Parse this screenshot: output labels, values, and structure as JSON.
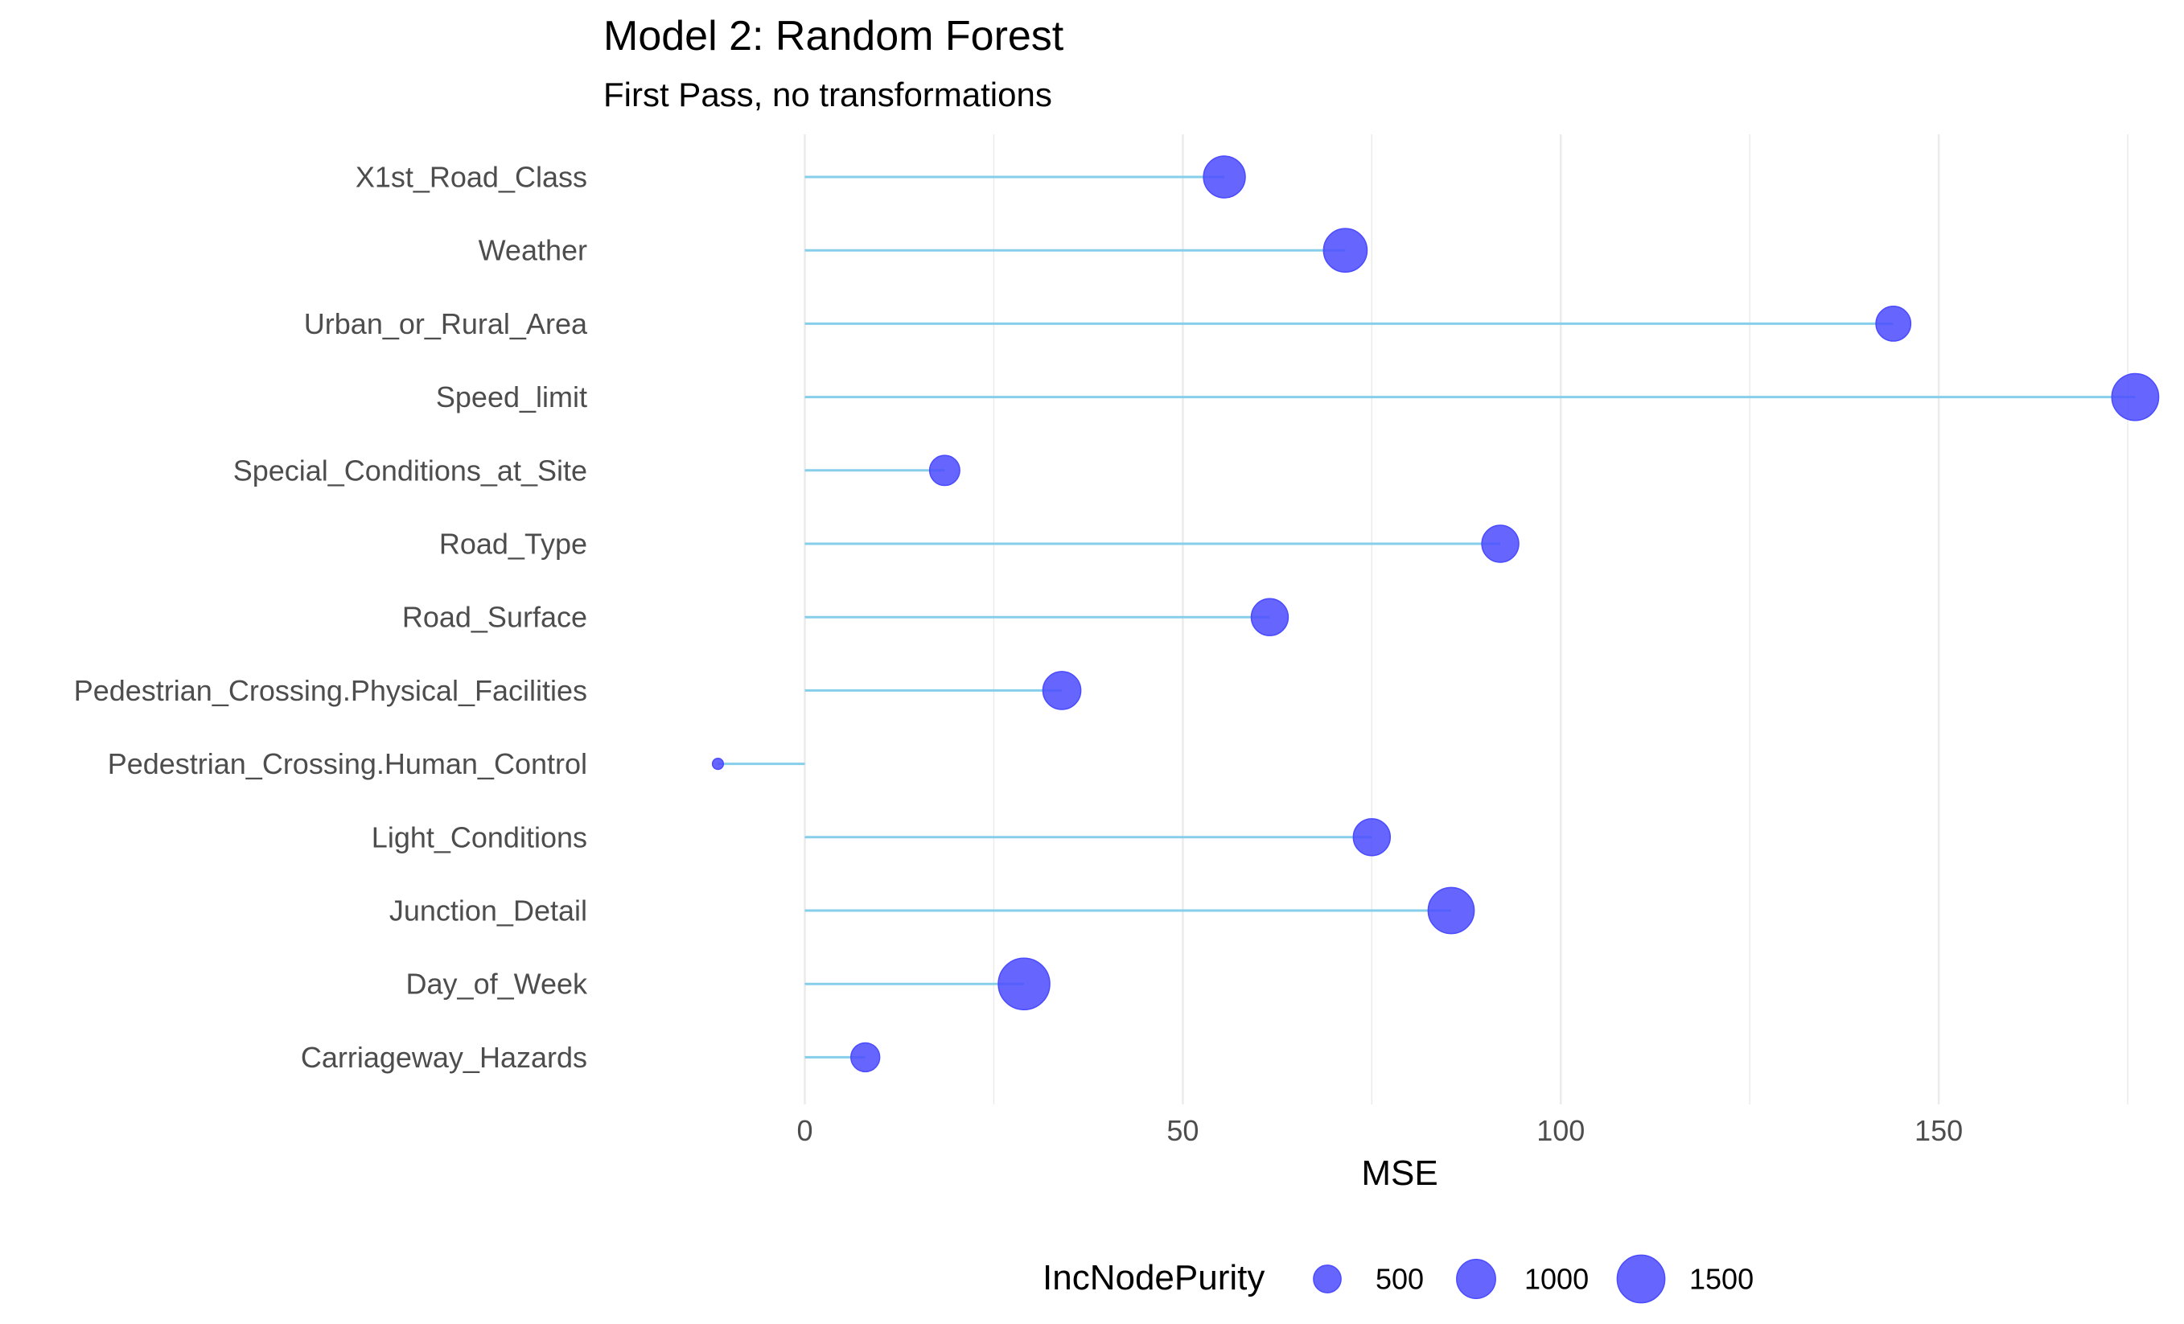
{
  "chart_data": {
    "type": "lollipop",
    "title": "Model 2: Random Forest",
    "subtitle": "First Pass, no transformations",
    "xlabel": "MSE",
    "ylabel": "",
    "xlim": [
      -24,
      180
    ],
    "x_ticks": [
      0,
      50,
      100,
      150
    ],
    "grid": true,
    "legend_position": "bottom",
    "size_legend": {
      "title": "IncNodePurity",
      "values": [
        500,
        1000,
        1500
      ],
      "labels": [
        "500",
        "1000",
        "1500"
      ]
    },
    "colors": {
      "segment": "#87CEEB",
      "point": "#4B4BFF",
      "grid": "#ebebeb"
    },
    "categories": [
      "X1st_Road_Class",
      "Weather",
      "Urban_or_Rural_Area",
      "Speed_limit",
      "Special_Conditions_at_Site",
      "Road_Type",
      "Road_Surface",
      "Pedestrian_Crossing.Physical_Facilities",
      "Pedestrian_Crossing.Human_Control",
      "Light_Conditions",
      "Junction_Detail",
      "Day_of_Week",
      "Carriageway_Hazards"
    ],
    "mse": [
      55.5,
      71.5,
      144,
      176,
      18.5,
      92,
      61.5,
      34,
      -11.5,
      75,
      85.5,
      29,
      8
    ],
    "inc_node_purity": [
      1150,
      1250,
      800,
      1450,
      600,
      900,
      900,
      950,
      80,
      900,
      1400,
      1750,
      550
    ]
  }
}
